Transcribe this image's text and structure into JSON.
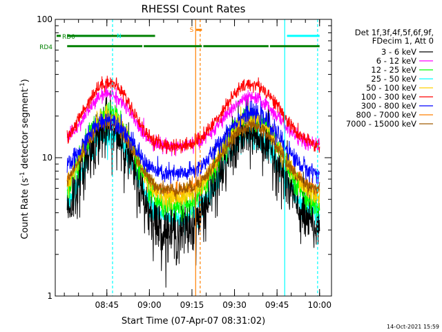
{
  "chart_data": {
    "type": "line",
    "title": "RHESSI Count Rates",
    "xlabel": "Start Time (07-Apr-07 08:31:02)",
    "ylabel": "Count Rate (s",
    "ylabel_sup": "-1",
    "ylabel_mid": " detector segment",
    "ylabel_end": ")",
    "yscale": "log",
    "ylim": [
      1,
      100
    ],
    "y_ticks": [
      {
        "value": 1,
        "label": "1"
      },
      {
        "value": 10,
        "label": "10"
      },
      {
        "value": 100,
        "label": "100"
      }
    ],
    "x_range_min": [
      0,
      89
    ],
    "x_ticks": [
      {
        "value": 14,
        "label": "08:45"
      },
      {
        "value": 29,
        "label": "09:00"
      },
      {
        "value": 44,
        "label": "09:15"
      },
      {
        "value": 59,
        "label": "09:30"
      },
      {
        "value": 74,
        "label": "09:45"
      },
      {
        "value": 89,
        "label": "10:00"
      }
    ],
    "x_minor_step_min": 5,
    "legend": {
      "position": "right",
      "header": [
        "Det 1f,3f,4f,5f,6f,9f,",
        "FDecim 1, Att 0"
      ]
    },
    "series": [
      {
        "name": "3 - 6 keV",
        "color": "#000000",
        "base": 2.8,
        "pk1": 16,
        "pk2": 15,
        "noise": 0.25
      },
      {
        "name": "6 - 12 keV",
        "color": "#ff00ff",
        "base": 12,
        "pk1": 29,
        "pk2": 27,
        "noise": 0.06
      },
      {
        "name": "12 - 25 keV",
        "color": "#00ff00",
        "base": 4.2,
        "pk1": 21,
        "pk2": 20,
        "noise": 0.1
      },
      {
        "name": "25 - 50 keV",
        "color": "#00ffff",
        "base": 3.6,
        "pk1": 15,
        "pk2": 14,
        "noise": 0.11
      },
      {
        "name": "50 - 100 keV",
        "color": "#ffd000",
        "base": 5.0,
        "pk1": 20,
        "pk2": 19,
        "noise": 0.08
      },
      {
        "name": "100 - 300 keV",
        "color": "#ff0000",
        "base": 12,
        "pk1": 35,
        "pk2": 34,
        "noise": 0.06
      },
      {
        "name": "300 - 800 keV",
        "color": "#0000ff",
        "base": 7.5,
        "pk1": 19,
        "pk2": 21,
        "noise": 0.08
      },
      {
        "name": "800 - 7000 keV",
        "color": "#ff8000",
        "base": 5.6,
        "pk1": 19,
        "pk2": 18,
        "noise": 0.07
      },
      {
        "name": "7000 - 15000 keV",
        "color": "#a05a00",
        "base": 5.8,
        "pk1": 18,
        "pk2": 17,
        "noise": 0.06
      }
    ],
    "peak_times_min": [
      14.5,
      65
    ],
    "dip_time_min": 33,
    "annotations": {
      "rd0": {
        "label": "RD0",
        "value": 76,
        "spans_min": [
          [
            0,
            31
          ]
        ],
        "color": "#008000"
      },
      "rd4": {
        "label": "RD4",
        "value": 64,
        "spans_min": [
          [
            0,
            26.5
          ],
          [
            27,
            47.5
          ],
          [
            48,
            71
          ],
          [
            71.5,
            89
          ]
        ],
        "color": "#008000"
      },
      "n": {
        "label": "N",
        "value": 76,
        "spans_min": [
          [
            0,
            15.5
          ],
          [
            77.5,
            89
          ]
        ],
        "color": "#00ffff"
      },
      "s": {
        "label": "S",
        "value": 84,
        "spans_min": [
          [
            45.5,
            47.5
          ]
        ],
        "color": "#ff8000"
      }
    },
    "vlines": [
      {
        "x_min": 16,
        "color": "#00ffff",
        "dash": true
      },
      {
        "x_min": 45.3,
        "color": "#ff8000",
        "dash": false
      },
      {
        "x_min": 46.9,
        "color": "#ff8000",
        "dash": true
      },
      {
        "x_min": 76.7,
        "color": "#00ffff",
        "dash": false
      },
      {
        "x_min": 88.3,
        "color": "#00ffff",
        "dash": true
      }
    ]
  },
  "footer": {
    "timestamp": "14-Oct-2021 15:59"
  }
}
